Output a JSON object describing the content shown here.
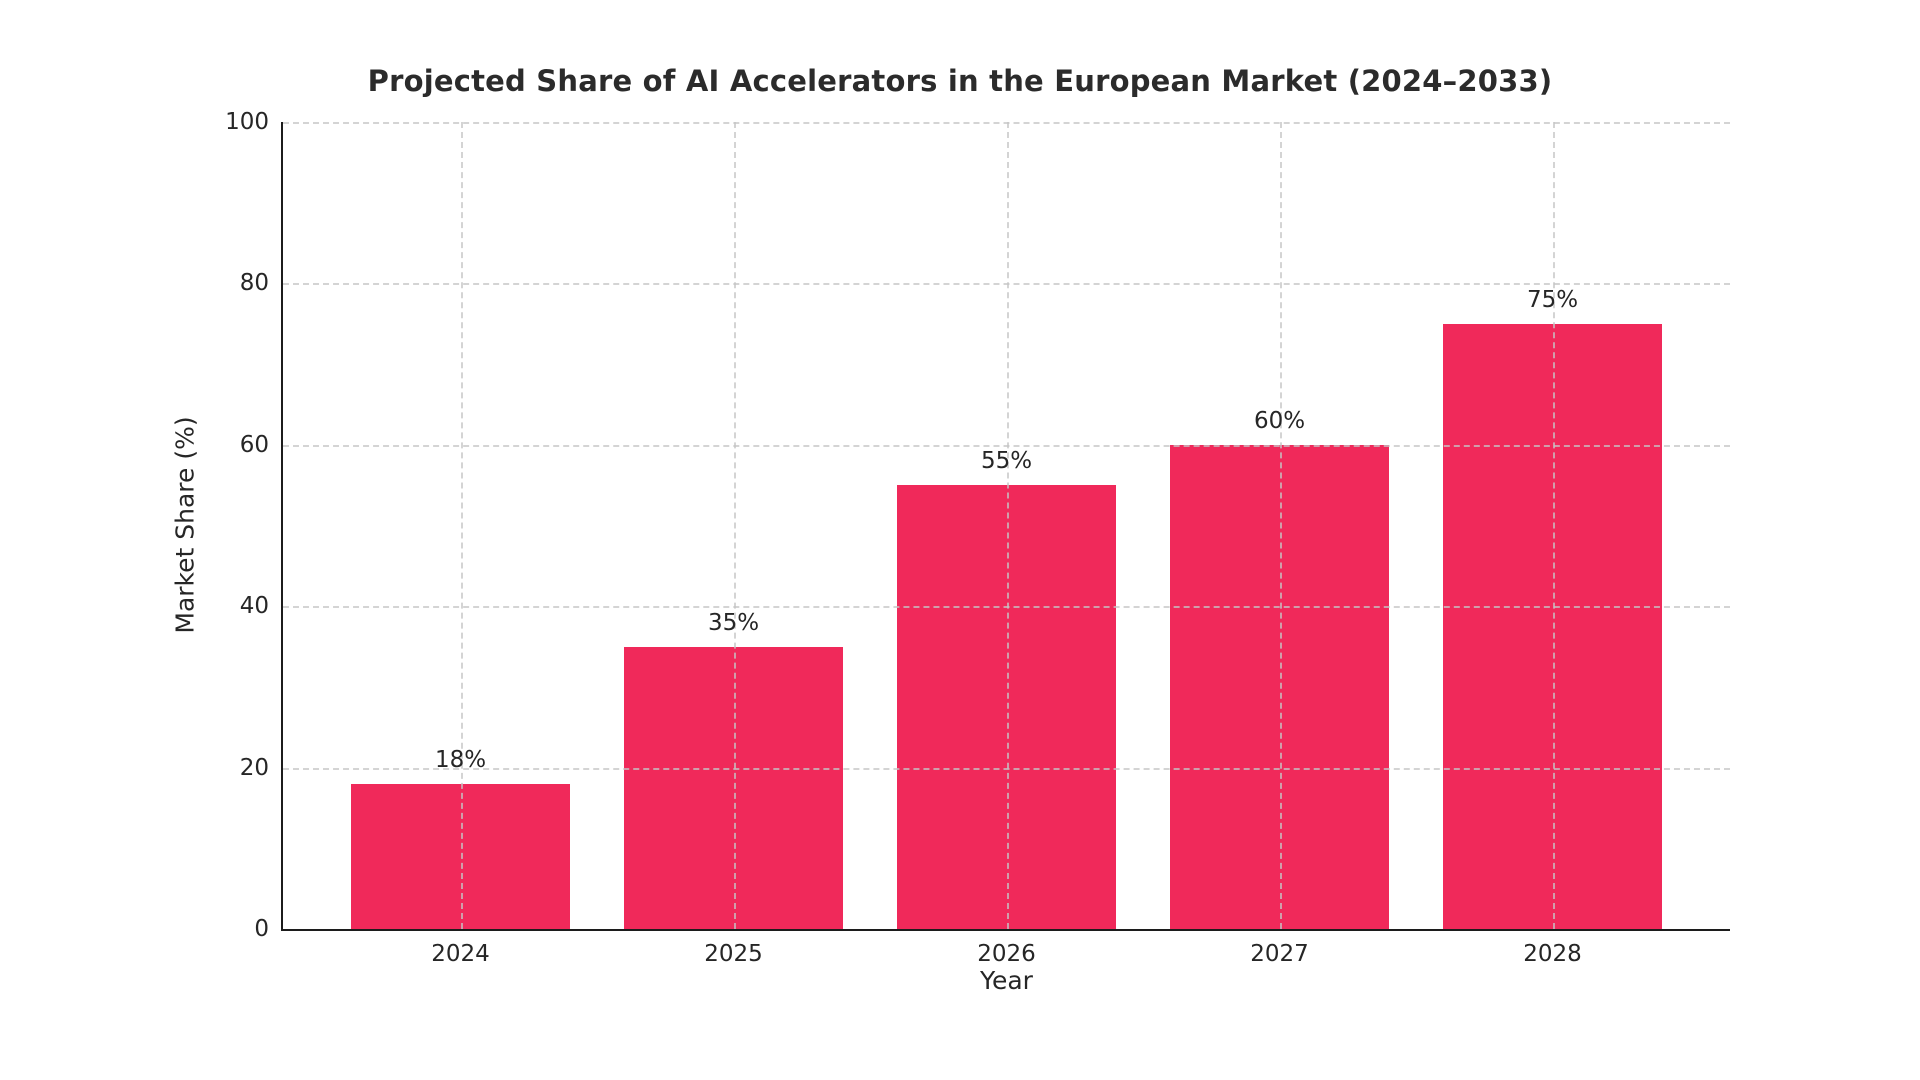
{
  "chart_data": {
    "type": "bar",
    "title": "Projected Share of AI Accelerators in the European Market (2024–2033)",
    "xlabel": "Year",
    "ylabel": "Market Share (%)",
    "categories": [
      "2024",
      "2025",
      "2026",
      "2027",
      "2028"
    ],
    "values": [
      18,
      35,
      55,
      60,
      75
    ],
    "bar_labels": [
      "18%",
      "35%",
      "55%",
      "60%",
      "75%"
    ],
    "ylim": [
      0,
      100
    ],
    "yticks": [
      0,
      20,
      40,
      60,
      80,
      100
    ],
    "grid": true,
    "grid_style": "dashed",
    "legend": "none",
    "colors": {
      "bar": "#F0295A",
      "grid": "#c6c6c6",
      "text": "#262626",
      "spine": "#1c1c1c",
      "title": "#2b2b2b"
    }
  }
}
